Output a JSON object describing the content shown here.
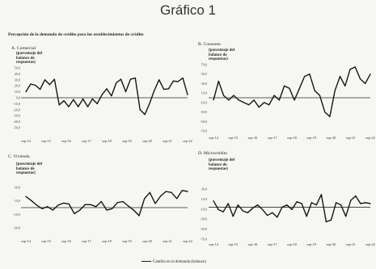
{
  "page": {
    "title": "Gráfico 1",
    "subtitle": "Percepción de la demanda de crédito para los establecimientos de crédito",
    "legend": "Cambio en la demanda (balance)"
  },
  "chart_data": [
    {
      "type": "line",
      "panel": "A. Comercial",
      "ylabel": [
        "(porcentaje del",
        "balance de",
        "respuestas)"
      ],
      "ylim": [
        -50,
        50
      ],
      "yticks": [
        "50,0",
        "40,0",
        "30,0",
        "20,0",
        "10,0",
        "0,0",
        "-10,0",
        "-20,0",
        "-30,0",
        "-40,0",
        "-50,0"
      ],
      "xticks": [
        "sep-14",
        "sep-15",
        "sep-16",
        "sep-17",
        "sep-18",
        "sep-19",
        "sep-20",
        "sep-21",
        "sep-22"
      ],
      "series": [
        {
          "values": [
            10,
            23,
            21,
            14,
            30,
            22,
            31,
            -12,
            -5,
            -15,
            -3,
            -15,
            -2,
            -15,
            -2,
            -10,
            5,
            15,
            3,
            25,
            31,
            10,
            31,
            33,
            -20,
            -28,
            -10,
            12,
            30,
            14,
            15,
            28,
            27,
            33,
            5
          ]
        }
      ]
    },
    {
      "type": "line",
      "panel": "B. Consumo",
      "ylabel": [
        "(porcentaje del",
        "balance de",
        "respuestas)"
      ],
      "ylim": [
        -70,
        70
      ],
      "yticks": [
        "70,0",
        "50,0",
        "30,0",
        "10,0",
        "-10,0",
        "-30,0",
        "-50,0",
        "-70,0"
      ],
      "xticks": [
        "sep-14",
        "sep-15",
        "sep-16",
        "sep-17",
        "sep-18",
        "sep-19",
        "sep-20",
        "sep-21",
        "sep-22"
      ],
      "series": [
        {
          "values": [
            -5,
            35,
            5,
            -5,
            5,
            -5,
            -10,
            -15,
            -5,
            -20,
            -10,
            -15,
            5,
            -5,
            25,
            20,
            -5,
            20,
            45,
            50,
            15,
            5,
            -30,
            -40,
            15,
            45,
            25,
            60,
            65,
            40,
            30,
            50
          ]
        }
      ]
    },
    {
      "type": "line",
      "panel": "C. Vivienda",
      "ylabel": [
        "(porcentaje del",
        "balance de",
        "respuestas)"
      ],
      "ylim": [
        -40,
        40
      ],
      "yticks": [
        "30,0",
        "10,0",
        "-10,0",
        "-30,0"
      ],
      "xticks": [
        "sep-14",
        "sep-15",
        "sep-16",
        "sep-17",
        "sep-18",
        "sep-19",
        "sep-20",
        "sep-21",
        "sep-22"
      ],
      "series": [
        {
          "values": [
            22,
            14,
            5,
            -2,
            2,
            -5,
            5,
            9,
            7,
            -12,
            -5,
            6,
            6,
            2,
            12,
            -5,
            -2,
            10,
            12,
            3,
            -5,
            -16,
            18,
            30,
            8,
            23,
            32,
            30,
            18,
            34,
            32
          ]
        }
      ]
    },
    {
      "type": "line",
      "panel": "D. Microcrédito",
      "ylabel": [
        "(porcentaje del",
        "balance de",
        "respuestas)"
      ],
      "ylim": [
        -70,
        40
      ],
      "yticks": [
        "30,0",
        "10,0",
        "-10,0",
        "-30,0",
        "-50,0",
        "-70,0"
      ],
      "xticks": [
        "sep-14",
        "sep-15",
        "sep-16",
        "sep-17",
        "sep-18",
        "sep-19",
        "sep-20",
        "sep-21",
        "sep-22"
      ],
      "series": [
        {
          "values": [
            14,
            -5,
            -10,
            8,
            -20,
            5,
            -8,
            -12,
            -2,
            5,
            -5,
            -18,
            -12,
            -22,
            0,
            5,
            -5,
            12,
            8,
            -20,
            10,
            5,
            28,
            -32,
            -28,
            10,
            5,
            -20,
            15,
            25,
            8,
            10,
            8
          ]
        }
      ]
    }
  ]
}
